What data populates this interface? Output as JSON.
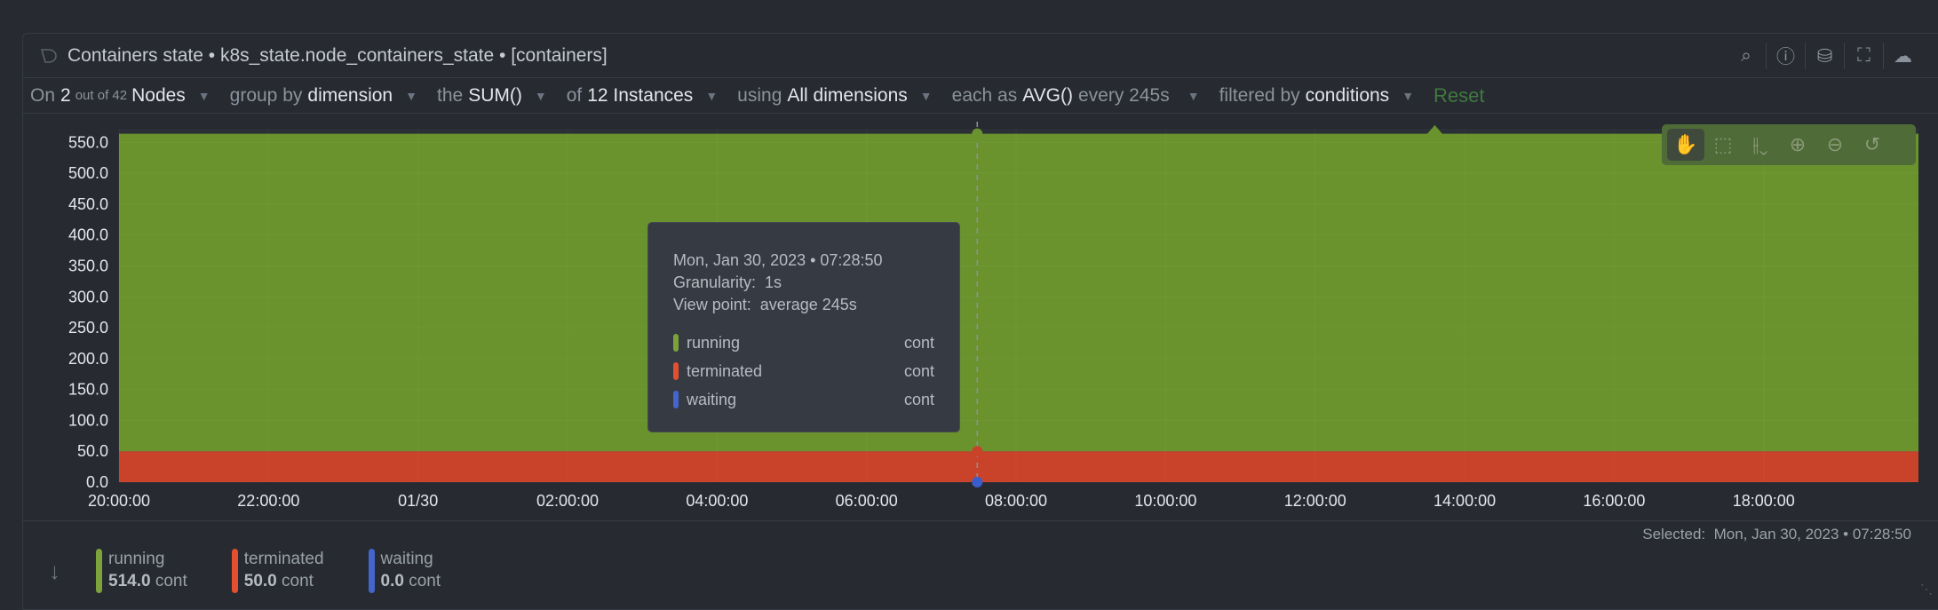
{
  "header": {
    "title": "Containers state",
    "context": "k8s_state.node_containers_state",
    "family": "[containers]",
    "sep": " • "
  },
  "toolbar": {
    "nodes": {
      "prefix": "On",
      "count": "2",
      "of": "out of 42",
      "label": "Nodes"
    },
    "group": {
      "prefix": "group by",
      "value": "dimension"
    },
    "agg": {
      "prefix": "the",
      "value": "SUM()"
    },
    "instances": {
      "prefix": "of",
      "value": "12 Instances"
    },
    "dims": {
      "prefix": "using",
      "value": "All dimensions"
    },
    "time": {
      "prefix": "each as",
      "value": "AVG()",
      "suffix": "every 245s"
    },
    "filter": {
      "prefix": "filtered by",
      "value": "conditions"
    },
    "reset": "Reset"
  },
  "tooltip": {
    "date": "Mon, Jan 30, 2023 • 07:28:50",
    "granularity": "Granularity:  1s",
    "viewpoint": "View point:  average 245s",
    "rows": [
      {
        "name": "running",
        "unit": "cont",
        "color": "#7ba33a"
      },
      {
        "name": "terminated",
        "unit": "cont",
        "color": "#e4502f"
      },
      {
        "name": "waiting",
        "unit": "cont",
        "color": "#4466cc"
      }
    ]
  },
  "selected": "Selected:  Mon, Jan 30, 2023 • 07:28:50",
  "legend": [
    {
      "name": "running",
      "value": "514.0",
      "unit": "cont",
      "color": "#7ba33a"
    },
    {
      "name": "terminated",
      "value": "50.0",
      "unit": "cont",
      "color": "#e4502f"
    },
    {
      "name": "waiting",
      "value": "0.0",
      "unit": "cont",
      "color": "#4466cc"
    }
  ],
  "chart_data": {
    "type": "area",
    "stacked": true,
    "x_hours": [
      0,
      4,
      8,
      11.48,
      14,
      17.5,
      17.6,
      17.7,
      20,
      24.07
    ],
    "xticks": [
      "20:00:00",
      "22:00:00",
      "01/30",
      "02:00:00",
      "04:00:00",
      "06:00:00",
      "08:00:00",
      "10:00:00",
      "12:00:00",
      "14:00:00",
      "16:00:00",
      "18:00:00"
    ],
    "yticks": [
      "0.0",
      "50.0",
      "100.0",
      "150.0",
      "200.0",
      "250.0",
      "300.0",
      "350.0",
      "400.0",
      "450.0",
      "500.0",
      "550.0"
    ],
    "ylim": [
      0,
      572
    ],
    "xlim_hours": [
      0,
      24.07
    ],
    "cursor_hour": 11.48,
    "series": [
      {
        "name": "waiting",
        "color": "#3b5ccc",
        "values": [
          0,
          0,
          0,
          0,
          0,
          0,
          0,
          0,
          0,
          0
        ]
      },
      {
        "name": "terminated",
        "color": "#c8432a",
        "values": [
          50,
          50,
          50,
          50,
          50,
          50,
          50,
          50,
          50,
          50
        ]
      },
      {
        "name": "running",
        "color": "#6a932e",
        "values": [
          514,
          514,
          514,
          514,
          514,
          514,
          528,
          514,
          514,
          514
        ]
      }
    ]
  }
}
